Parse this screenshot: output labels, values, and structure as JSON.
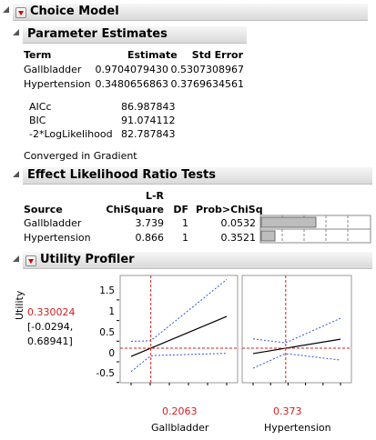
{
  "choice_model": {
    "title": "Choice Model"
  },
  "parameter_estimates": {
    "title": "Parameter Estimates",
    "columns": [
      "Term",
      "Estimate",
      "Std Error"
    ],
    "rows": [
      {
        "term": "Gallbladder",
        "estimate": "0.9704079430",
        "std_error": "0.5307308967"
      },
      {
        "term": "Hypertension",
        "estimate": "0.3480656863",
        "std_error": "0.3769634561"
      }
    ],
    "fit_stats": [
      {
        "label": "AICc",
        "value": "86.987843"
      },
      {
        "label": "BIC",
        "value": "91.074112"
      },
      {
        "label": "-2*LogLikelihood",
        "value": "82.787843"
      }
    ],
    "convergence": "Converged in Gradient"
  },
  "lr_tests": {
    "title": "Effect Likelihood Ratio Tests",
    "columns": {
      "source": "Source",
      "lr_top": "L-R",
      "lr_bottom": "ChiSquare",
      "df": "DF",
      "prob": "Prob>ChiSq"
    },
    "rows": [
      {
        "source": "Gallbladder",
        "chisq": "3.739",
        "df": "1",
        "prob": "0.0532",
        "bar_fraction": 0.5
      },
      {
        "source": "Hypertension",
        "chisq": "0.866",
        "df": "1",
        "prob": "0.3521",
        "bar_fraction": 0.13
      }
    ]
  },
  "utility_profiler": {
    "title": "Utility Profiler",
    "y_label": "Utility",
    "current_value": "0.330024",
    "ci_line1": "[-0.0294,",
    "ci_line2": "0.68941]",
    "y_ticks": [
      "1.5",
      "1",
      "0.5",
      "0",
      "-0.5"
    ],
    "x_ticks": [
      "0",
      "0.2",
      "0.4",
      "0.6",
      "0.8",
      "1"
    ],
    "factors": [
      {
        "name": "Gallbladder",
        "current": "0.2063"
      },
      {
        "name": "Hypertension",
        "current": "0.373"
      }
    ]
  },
  "colors": {
    "accent_red": "#d02020",
    "ci_blue": "#2a55e0"
  }
}
